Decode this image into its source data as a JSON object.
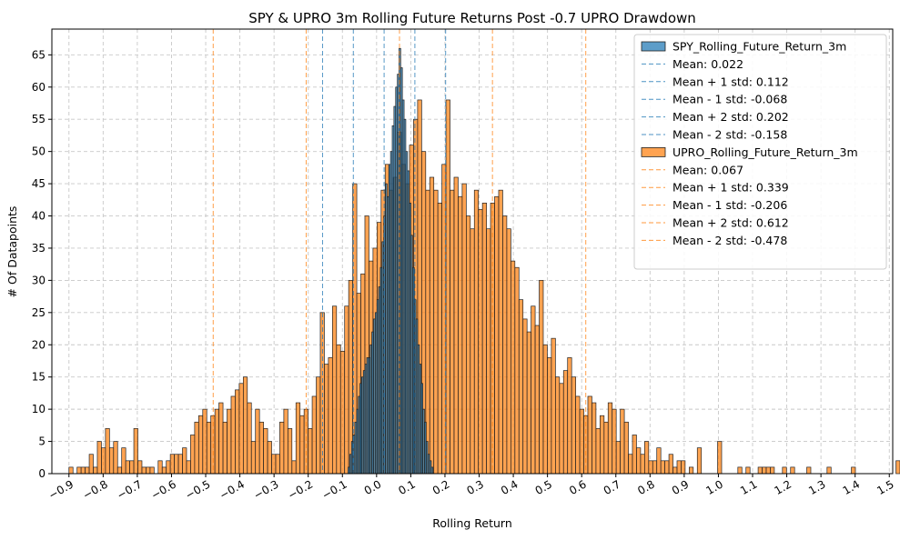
{
  "chart_data": {
    "type": "histogram",
    "title": "SPY & UPRO 3m Rolling Future Returns Post -0.7 UPRO Drawdown",
    "xlabel": "Rolling Return",
    "ylabel": "# Of Datapoints",
    "xlim": [
      -0.95,
      1.51
    ],
    "ylim": [
      0,
      69
    ],
    "xticks": [
      -0.9,
      -0.8,
      -0.7,
      -0.6,
      -0.5,
      -0.4,
      -0.3,
      -0.2,
      -0.1,
      0.0,
      0.1,
      0.2,
      0.3,
      0.4,
      0.5,
      0.6,
      0.7,
      0.8,
      0.9,
      1.0,
      1.1,
      1.2,
      1.3,
      1.4,
      1.5
    ],
    "xtick_labels": [
      "−0.9",
      "−0.8",
      "−0.7",
      "−0.6",
      "−0.5",
      "−0.4",
      "−0.3",
      "−0.2",
      "−0.1",
      "0.0",
      "0.1",
      "0.2",
      "0.3",
      "0.4",
      "0.5",
      "0.6",
      "0.7",
      "0.8",
      "0.9",
      "1.0",
      "1.1",
      "1.2",
      "1.3",
      "1.4",
      "1.5"
    ],
    "yticks": [
      0,
      5,
      10,
      15,
      20,
      25,
      30,
      35,
      40,
      45,
      50,
      55,
      60,
      65
    ],
    "grid": true,
    "legend_position": "upper right",
    "series": [
      {
        "name": "SPY_Rolling_Future_Return_3m",
        "color": "#1f77b4",
        "bin_start": -0.0835,
        "bin_width": 0.00497,
        "counts": [
          1,
          3,
          5,
          6,
          8,
          10,
          12,
          14,
          15,
          16,
          17,
          18,
          18,
          20,
          22,
          24,
          25,
          27,
          29,
          32,
          36,
          40,
          45,
          43,
          48,
          50,
          54,
          57,
          60,
          62,
          66,
          63,
          58,
          55,
          50,
          47,
          42,
          37,
          32,
          27,
          24,
          20,
          17,
          14,
          10,
          8,
          5,
          3,
          2,
          1
        ],
        "mean_lines": [
          {
            "label": "Mean: 0.022",
            "value": 0.022
          },
          {
            "label": "Mean + 1 std: 0.112",
            "value": 0.112
          },
          {
            "label": "Mean - 1 std: -0.068",
            "value": -0.068
          },
          {
            "label": "Mean + 2 std: 0.202",
            "value": 0.202
          },
          {
            "label": "Mean - 2 std: -0.158",
            "value": -0.158
          }
        ]
      },
      {
        "name": "UPRO_Rolling_Future_Return_3m",
        "color": "#ff7f0e",
        "bin_start": -0.9,
        "bin_width": 0.01186,
        "counts": [
          1,
          0,
          1,
          1,
          1,
          3,
          1,
          5,
          4,
          7,
          4,
          5,
          1,
          4,
          2,
          2,
          7,
          2,
          1,
          1,
          1,
          0,
          2,
          1,
          2,
          3,
          3,
          3,
          4,
          2,
          6,
          8,
          9,
          10,
          8,
          9,
          10,
          11,
          8,
          10,
          12,
          13,
          14,
          15,
          11,
          5,
          10,
          8,
          7,
          5,
          3,
          3,
          8,
          10,
          7,
          2,
          11,
          9,
          10,
          7,
          12,
          15,
          25,
          17,
          18,
          26,
          20,
          19,
          26,
          30,
          45,
          28,
          31,
          40,
          33,
          35,
          39,
          44,
          48,
          44,
          46,
          53,
          48,
          45,
          51,
          55,
          58,
          50,
          44,
          46,
          44,
          42,
          48,
          58,
          44,
          46,
          43,
          45,
          40,
          38,
          44,
          41,
          42,
          38,
          42,
          43,
          44,
          40,
          38,
          33,
          32,
          27,
          24,
          22,
          26,
          23,
          30,
          20,
          18,
          21,
          15,
          14,
          16,
          18,
          15,
          12,
          10,
          9,
          12,
          11,
          7,
          9,
          8,
          11,
          10,
          5,
          10,
          8,
          3,
          6,
          4,
          3,
          5,
          2,
          2,
          4,
          2,
          2,
          3,
          1,
          2,
          2,
          0,
          1,
          0,
          4,
          0,
          0,
          0,
          0,
          5,
          0,
          0,
          0,
          0,
          1,
          0,
          1,
          0,
          0,
          1,
          1,
          1,
          1,
          0,
          0,
          1,
          0,
          1,
          0,
          0,
          0,
          1,
          0,
          0,
          0,
          0,
          1,
          0,
          0,
          0,
          0,
          0,
          1,
          0,
          0,
          0,
          0,
          0,
          0,
          0,
          0,
          0,
          0,
          2,
          0,
          0,
          0,
          0,
          1,
          0,
          0,
          0,
          0,
          0,
          0,
          0,
          1,
          1,
          0,
          0,
          1,
          0,
          1
        ],
        "mean_lines": [
          {
            "label": "Mean: 0.067",
            "value": 0.067
          },
          {
            "label": "Mean + 1 std: 0.339",
            "value": 0.339
          },
          {
            "label": "Mean - 1 std: -0.206",
            "value": -0.206
          },
          {
            "label": "Mean + 2 std: 0.612",
            "value": 0.612
          },
          {
            "label": "Mean - 2 std: -0.478",
            "value": -0.478
          }
        ]
      }
    ]
  },
  "colors": {
    "spy": "#1f77b4",
    "upro": "#ff7f0e",
    "grid": "#c8c8c8",
    "bar_edge": "#222222"
  }
}
